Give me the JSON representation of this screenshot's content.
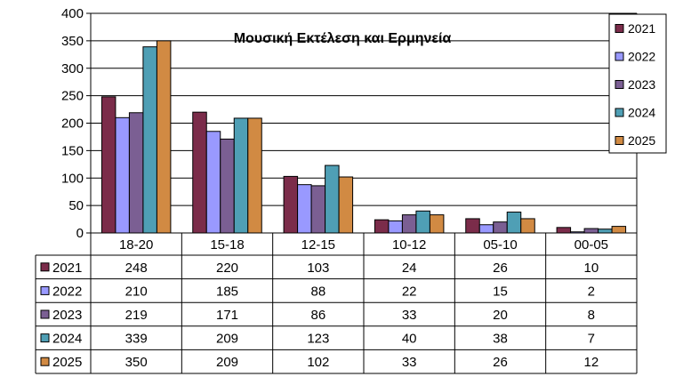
{
  "chart_data": {
    "type": "bar",
    "title": "Μουσική  Εκτέλεση και Ερμηνεία",
    "categories": [
      "18-20",
      "15-18",
      "12-15",
      "10-12",
      "05-10",
      "00-05"
    ],
    "ylim": [
      0,
      400
    ],
    "yticks": [
      "0",
      "50",
      "100",
      "150",
      "200",
      "250",
      "300",
      "350",
      "400"
    ],
    "grid": true,
    "legend_position": "top-right",
    "series": [
      {
        "name": "2021",
        "color": "#7b2c4a",
        "values": [
          248,
          220,
          103,
          24,
          26,
          10
        ]
      },
      {
        "name": "2022",
        "color": "#9999ff",
        "values": [
          210,
          185,
          88,
          22,
          15,
          2
        ]
      },
      {
        "name": "2023",
        "color": "#7b5f93",
        "values": [
          219,
          171,
          86,
          33,
          20,
          8
        ]
      },
      {
        "name": "2024",
        "color": "#4f9fb5",
        "values": [
          339,
          209,
          123,
          40,
          38,
          7
        ]
      },
      {
        "name": "2025",
        "color": "#d18a43",
        "values": [
          350,
          209,
          102,
          33,
          26,
          12
        ]
      }
    ]
  }
}
